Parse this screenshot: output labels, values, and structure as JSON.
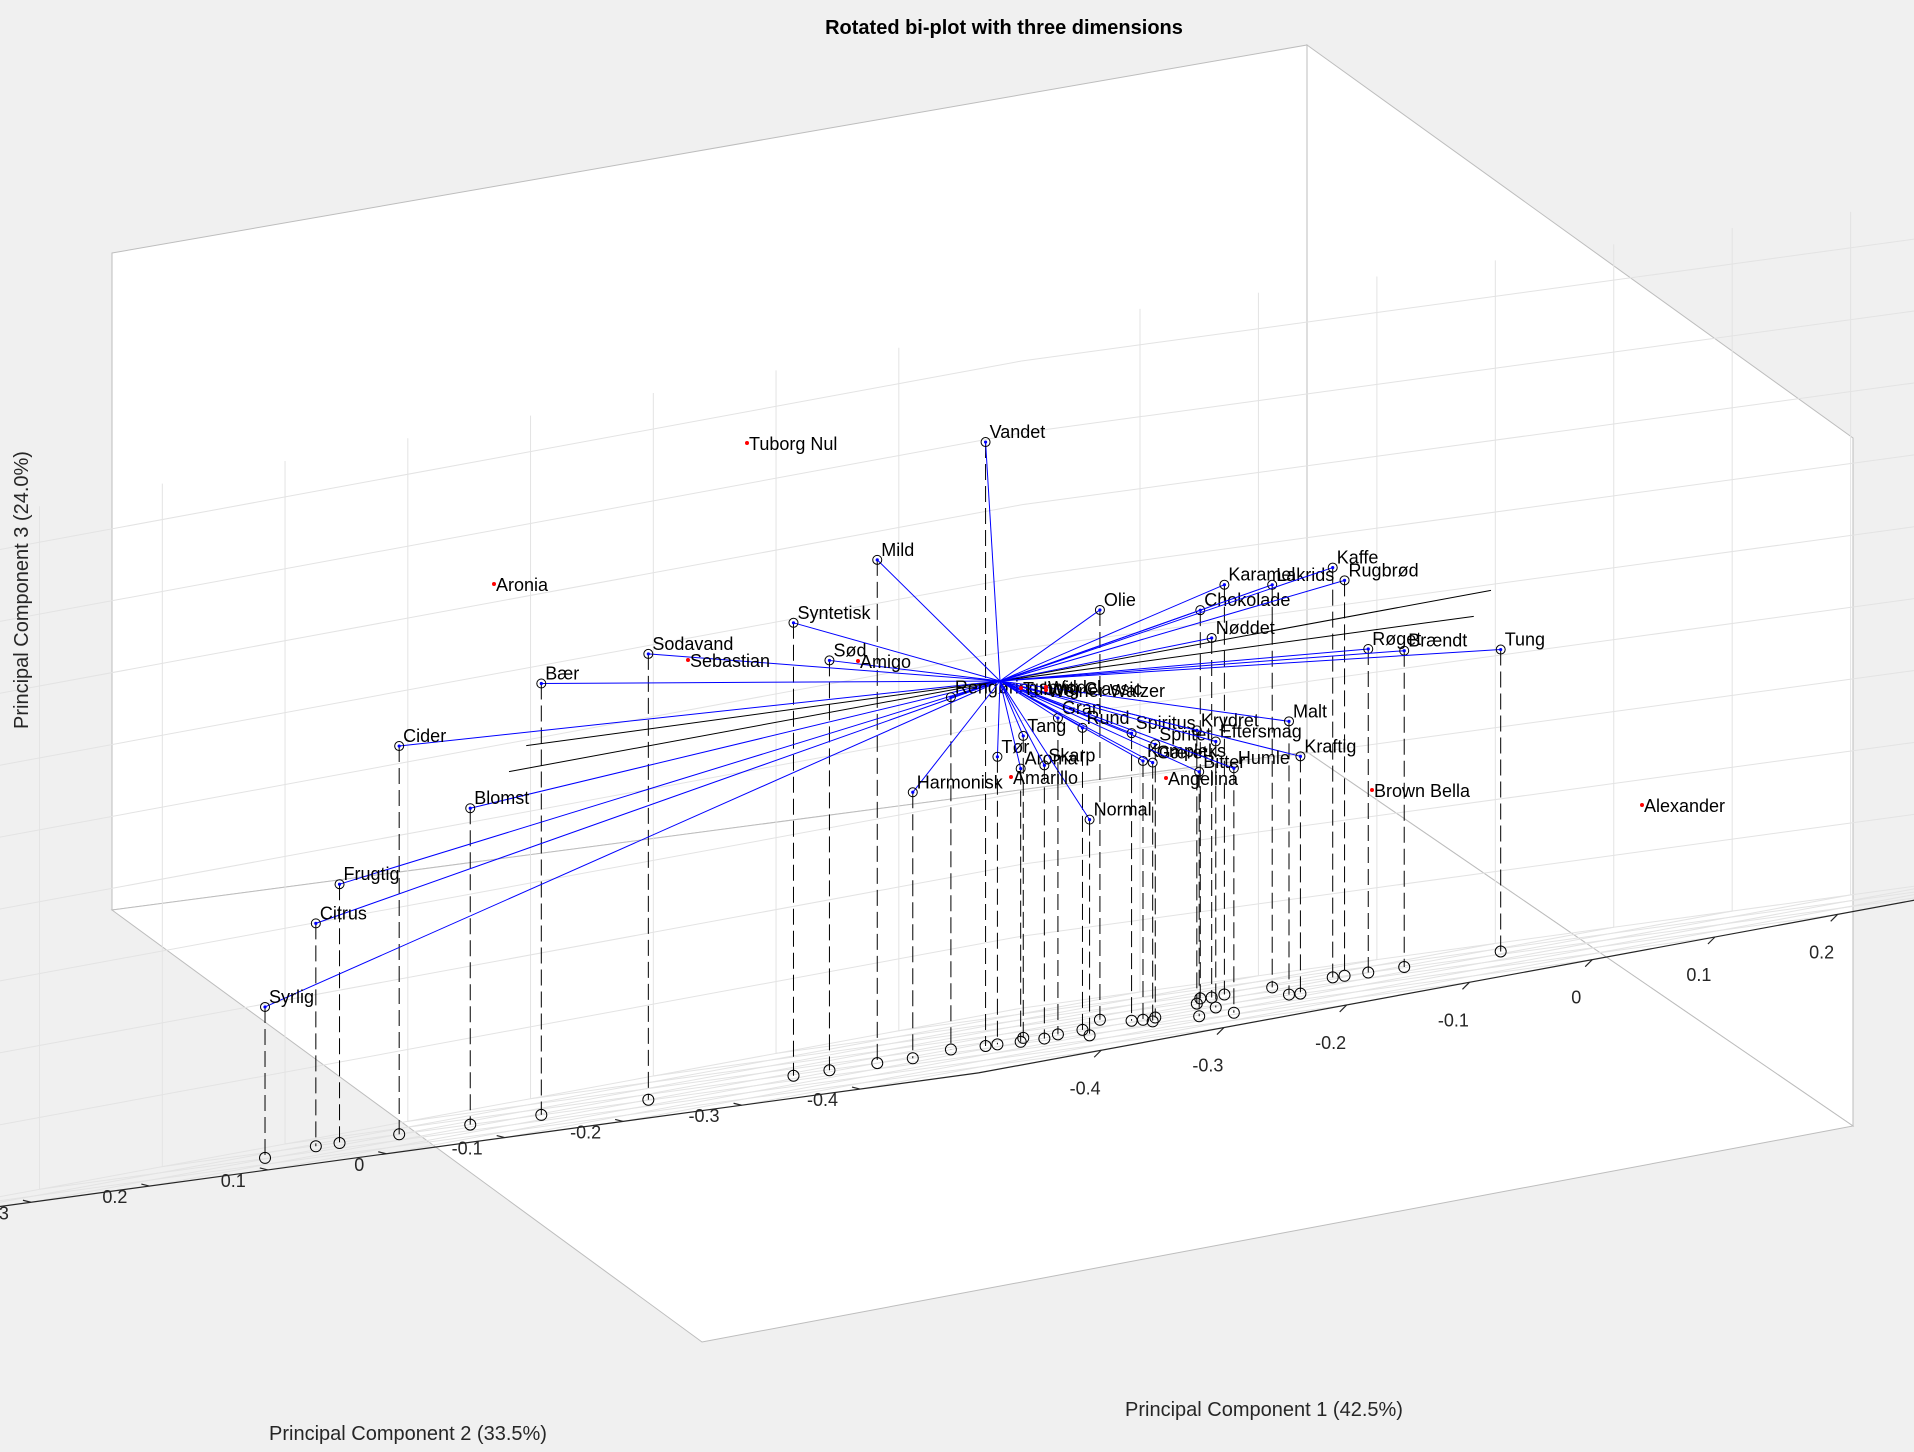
{
  "chart_data": {
    "type": "scatter",
    "title": "Rotated bi-plot with three dimensions",
    "xlabel": "Principal Component 1 (42.5%)",
    "ylabel": "Principal Component 2 (33.5%)",
    "zlabel": "Principal Component 3 (24.0%)",
    "xlim": [
      -0.5,
      0.5
    ],
    "ylim": [
      -0.5,
      0.5
    ],
    "zlim": [
      -0.5,
      0.45
    ],
    "x_ticks": [
      "-0.4",
      "-0.3",
      "-0.2",
      "-0.1",
      "0",
      "0.1",
      "0.2",
      "0.3",
      "0.4"
    ],
    "y_ticks": [
      "0.4",
      "0.3",
      "0.2",
      "0.1",
      "0",
      "-0.1",
      "-0.2",
      "-0.3",
      "-0.4"
    ],
    "z_ticks": [
      "0.4",
      "0.3",
      "0.2",
      "0.1",
      "0",
      "-0.1",
      "-0.2",
      "-0.3",
      "-0.4",
      "-0.5"
    ],
    "grid": true,
    "colors": {
      "vector": "#0000ff",
      "score": "#ff0000",
      "axis_line": "#000000",
      "grid": "#e3e3e3"
    },
    "variables": [
      {
        "name": "Vandet",
        "pc1": -0.06,
        "pc2": -0.05,
        "pc3": 0.34
      },
      {
        "name": "Mild",
        "pc1": -0.1,
        "pc2": 0.0,
        "pc3": 0.2
      },
      {
        "name": "Syntetisk",
        "pc1": -0.12,
        "pc2": 0.05,
        "pc3": 0.13
      },
      {
        "name": "Sodavand",
        "pc1": -0.19,
        "pc2": 0.1,
        "pc3": 0.12
      },
      {
        "name": "Sød",
        "pc1": -0.11,
        "pc2": 0.03,
        "pc3": 0.07
      },
      {
        "name": "Bær",
        "pc1": -0.2,
        "pc2": 0.18,
        "pc3": 0.1
      },
      {
        "name": "Cider",
        "pc1": -0.2,
        "pc2": 0.3,
        "pc3": 0.04
      },
      {
        "name": "Blomst",
        "pc1": -0.2,
        "pc2": 0.24,
        "pc3": -0.06
      },
      {
        "name": "Frugtig",
        "pc1": -0.21,
        "pc2": 0.34,
        "pc3": -0.14
      },
      {
        "name": "Citrus",
        "pc1": -0.21,
        "pc2": 0.36,
        "pc3": -0.19
      },
      {
        "name": "Syrlig",
        "pc1": -0.29,
        "pc2": 0.32,
        "pc3": -0.29
      },
      {
        "name": "Rengøringsmiddel",
        "pc1": -0.04,
        "pc2": 0.0,
        "pc3": -0.01
      },
      {
        "name": "Olie",
        "pc1": 0.12,
        "pc2": 0.04,
        "pc3": 0.07
      },
      {
        "name": "Tang",
        "pc1": -0.01,
        "pc2": -0.03,
        "pc3": -0.08
      },
      {
        "name": "Chokolade",
        "pc1": 0.25,
        "pc2": 0.09,
        "pc3": 0.04
      },
      {
        "name": "Karamel",
        "pc1": 0.26,
        "pc2": 0.08,
        "pc3": 0.07
      },
      {
        "name": "Lakrids",
        "pc1": 0.27,
        "pc2": 0.05,
        "pc3": 0.06
      },
      {
        "name": "Nøddet",
        "pc1": 0.24,
        "pc2": 0.07,
        "pc3": 0.0
      },
      {
        "name": "Kaffe",
        "pc1": 0.3,
        "pc2": 0.03,
        "pc3": 0.07
      },
      {
        "name": "Rugbrød",
        "pc1": 0.3,
        "pc2": 0.02,
        "pc3": 0.05
      },
      {
        "name": "Røget",
        "pc1": 0.3,
        "pc2": 0.0,
        "pc3": -0.05
      },
      {
        "name": "Brændt",
        "pc1": 0.31,
        "pc2": -0.02,
        "pc3": -0.06
      },
      {
        "name": "Tung",
        "pc1": 0.35,
        "pc2": -0.06,
        "pc3": -0.08
      },
      {
        "name": "Krydret",
        "pc1": 0.17,
        "pc2": 0.01,
        "pc3": -0.12
      },
      {
        "name": "Spiritus",
        "pc1": 0.03,
        "pc2": -0.08,
        "pc3": -0.1
      },
      {
        "name": "Spritet",
        "pc1": 0.03,
        "pc2": -0.1,
        "pc3": -0.12
      },
      {
        "name": "Rund",
        "pc1": -0.01,
        "pc2": -0.08,
        "pc3": -0.08
      },
      {
        "name": "Gran",
        "pc1": -0.03,
        "pc2": -0.08,
        "pc3": -0.06
      },
      {
        "name": "Kompleks",
        "pc1": 0.02,
        "pc2": -0.1,
        "pc3": -0.14
      },
      {
        "name": "Eftersmag",
        "pc1": 0.06,
        "pc2": -0.12,
        "pc3": -0.13
      },
      {
        "name": "Malt",
        "pc1": 0.11,
        "pc2": -0.13,
        "pc3": -0.12
      },
      {
        "name": "Kraftig",
        "pc1": 0.1,
        "pc2": -0.15,
        "pc3": -0.17
      },
      {
        "name": "Tør",
        "pc1": -0.06,
        "pc2": -0.06,
        "pc3": -0.1
      },
      {
        "name": "Harmonisk",
        "pc1": -0.1,
        "pc2": -0.03,
        "pc3": -0.13
      },
      {
        "name": "Aroma",
        "pc1": -0.07,
        "pc2": -0.09,
        "pc3": -0.12
      },
      {
        "name": "Skarp",
        "pc1": -0.07,
        "pc2": -0.11,
        "pc3": -0.12
      },
      {
        "name": "Gæret",
        "pc1": -0.03,
        "pc2": -0.16,
        "pc3": -0.14
      },
      {
        "name": "Normal",
        "pc1": -0.12,
        "pc2": -0.2,
        "pc3": -0.2
      },
      {
        "name": "Bitter",
        "pc1": -0.05,
        "pc2": -0.22,
        "pc3": -0.16
      },
      {
        "name": "Humle",
        "pc1": -0.07,
        "pc2": -0.27,
        "pc3": -0.16
      }
    ],
    "scores": [
      "Tuborg Nul",
      "Aronia",
      "Sebastian",
      "Amigo",
      "Tuborg Classic",
      "Wit",
      "Weiner Walzer",
      "Amarillo",
      "Angelina",
      "Brown Bella",
      "Alexander"
    ]
  }
}
